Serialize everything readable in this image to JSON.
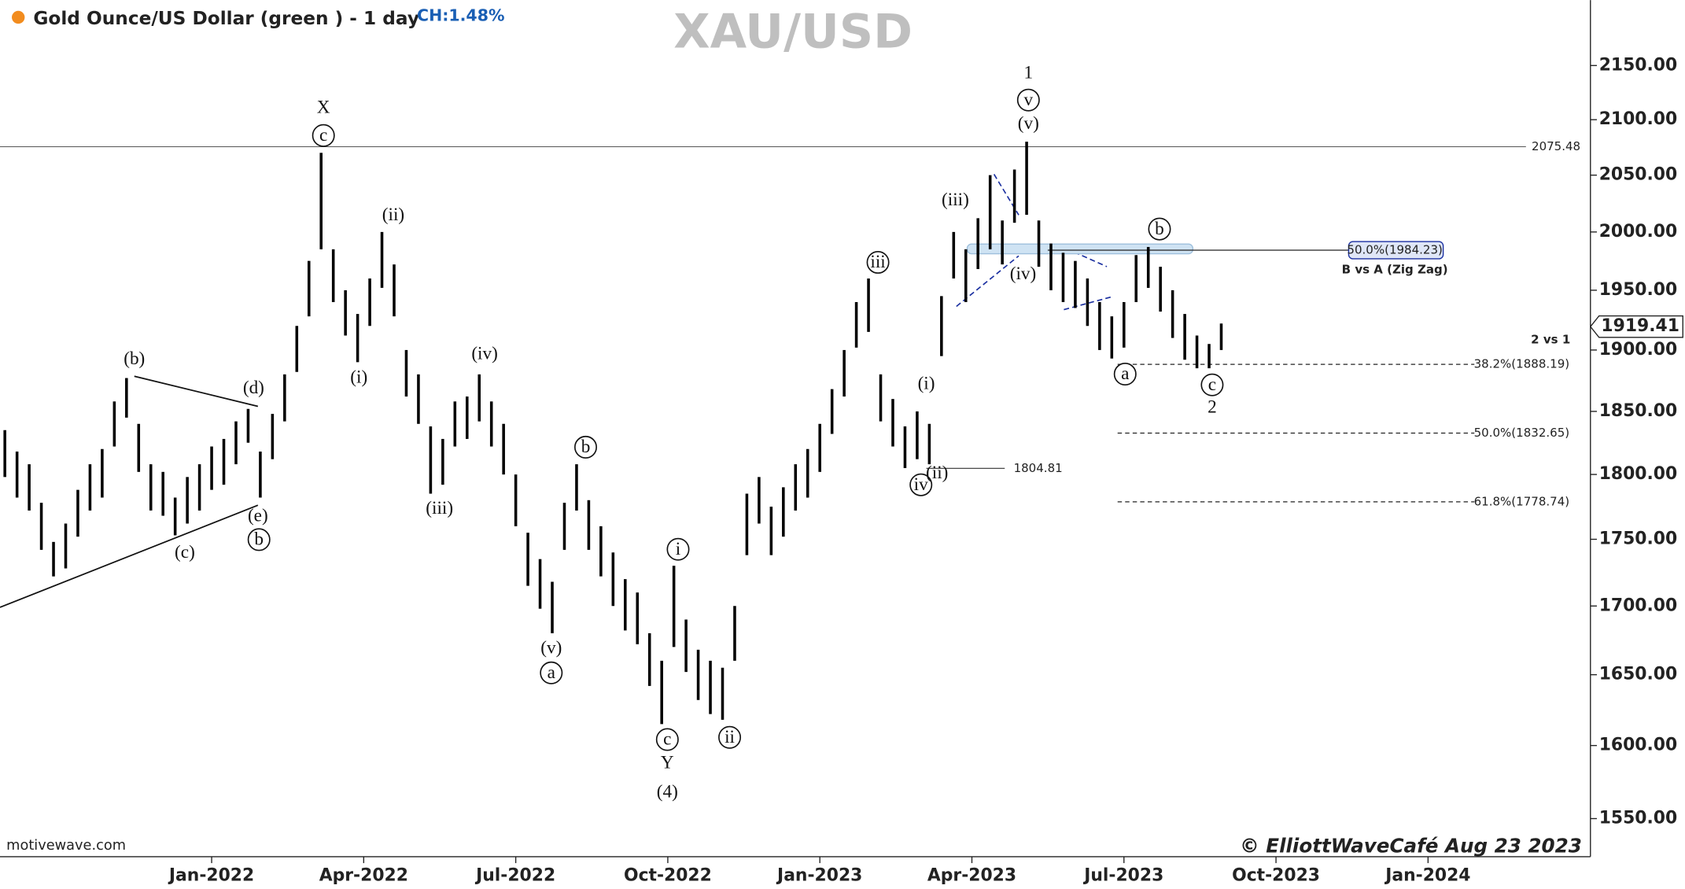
{
  "chart_data": {
    "type": "ohlc",
    "title": "Gold Ounce/US Dollar (green ) - 1 day",
    "change": "CH:1.48%",
    "watermark": "XAU/USD",
    "source": "motivewave.com",
    "credit": "© ElliottWaveCafé Aug 23 2023",
    "log_scale": true,
    "xlim": [
      2021.652,
      2024.267
    ],
    "xticks": [
      {
        "value": 2022.0,
        "label": "Jan-2022"
      },
      {
        "value": 2022.25,
        "label": "Apr-2022"
      },
      {
        "value": 2022.5,
        "label": "Jul-2022"
      },
      {
        "value": 2022.75,
        "label": "Oct-2022"
      },
      {
        "value": 2023.0,
        "label": "Jan-2023"
      },
      {
        "value": 2023.25,
        "label": "Apr-2023"
      },
      {
        "value": 2023.5,
        "label": "Jul-2023"
      },
      {
        "value": 2023.75,
        "label": "Oct-2023"
      },
      {
        "value": 2024.0,
        "label": "Jan-2024"
      }
    ],
    "ylim": [
      1526,
      2212
    ],
    "yticks": [
      {
        "value": 1550,
        "label": "1550.00"
      },
      {
        "value": 1600,
        "label": "1600.00"
      },
      {
        "value": 1650,
        "label": "1650.00"
      },
      {
        "value": 1700,
        "label": "1700.00"
      },
      {
        "value": 1750,
        "label": "1750.00"
      },
      {
        "value": 1800,
        "label": "1800.00"
      },
      {
        "value": 1850,
        "label": "1850.00"
      },
      {
        "value": 1900,
        "label": "1900.00"
      },
      {
        "value": 1950,
        "label": "1950.00"
      },
      {
        "value": 2000,
        "label": "2000.00"
      },
      {
        "value": 2050,
        "label": "2050.00"
      },
      {
        "value": 2100,
        "label": "2100.00"
      },
      {
        "value": 2150,
        "label": "2150.00"
      }
    ],
    "x": [
      2021.66,
      2021.68,
      2021.7,
      2021.72,
      2021.74,
      2021.76,
      2021.78,
      2021.8,
      2021.82,
      2021.84,
      2021.86,
      2021.88,
      2021.9,
      2021.92,
      2021.94,
      2021.96,
      2021.98,
      2022.0,
      2022.02,
      2022.04,
      2022.06,
      2022.08,
      2022.1,
      2022.12,
      2022.14,
      2022.16,
      2022.18,
      2022.2,
      2022.22,
      2022.24,
      2022.26,
      2022.28,
      2022.3,
      2022.32,
      2022.34,
      2022.36,
      2022.38,
      2022.4,
      2022.42,
      2022.44,
      2022.46,
      2022.48,
      2022.5,
      2022.52,
      2022.54,
      2022.56,
      2022.58,
      2022.6,
      2022.62,
      2022.64,
      2022.66,
      2022.68,
      2022.7,
      2022.72,
      2022.74,
      2022.76,
      2022.78,
      2022.8,
      2022.82,
      2022.84,
      2022.86,
      2022.88,
      2022.9,
      2022.92,
      2022.94,
      2022.96,
      2022.98,
      2023.0,
      2023.02,
      2023.04,
      2023.06,
      2023.08,
      2023.1,
      2023.12,
      2023.14,
      2023.16,
      2023.18,
      2023.2,
      2023.22,
      2023.24,
      2023.26,
      2023.28,
      2023.3,
      2023.32,
      2023.34,
      2023.36,
      2023.38,
      2023.4,
      2023.42,
      2023.44,
      2023.46,
      2023.48,
      2023.5,
      2023.52,
      2023.54,
      2023.56,
      2023.58,
      2023.6,
      2023.62,
      2023.64,
      2023.66
    ],
    "series": [
      {
        "color": "#000000",
        "high": [
          1835,
          1818,
          1808,
          1778,
          1748,
          1762,
          1788,
          1808,
          1820,
          1858,
          1877,
          1840,
          1808,
          1802,
          1782,
          1798,
          1808,
          1822,
          1828,
          1842,
          1852,
          1818,
          1848,
          1880,
          1920,
          1975,
          2070,
          1985,
          1950,
          1930,
          1960,
          2000,
          1972,
          1900,
          1880,
          1838,
          1828,
          1858,
          1862,
          1880,
          1858,
          1840,
          1800,
          1755,
          1735,
          1718,
          1778,
          1808,
          1780,
          1760,
          1740,
          1720,
          1710,
          1680,
          1660,
          1730,
          1690,
          1668,
          1660,
          1655,
          1700,
          1785,
          1798,
          1775,
          1790,
          1808,
          1820,
          1840,
          1868,
          1900,
          1940,
          1960,
          1880,
          1860,
          1838,
          1850,
          1840,
          1945,
          2000,
          1985,
          2012,
          2050,
          2010,
          2055,
          2080,
          2010,
          1990,
          1982,
          1975,
          1960,
          1940,
          1928,
          1940,
          1980,
          1987,
          1970,
          1950,
          1930,
          1912,
          1905,
          1922
        ],
        "low": [
          1798,
          1782,
          1772,
          1742,
          1722,
          1728,
          1752,
          1772,
          1782,
          1822,
          1845,
          1802,
          1772,
          1768,
          1753,
          1762,
          1772,
          1788,
          1792,
          1808,
          1825,
          1782,
          1812,
          1842,
          1882,
          1928,
          1985,
          1940,
          1912,
          1890,
          1920,
          1952,
          1928,
          1862,
          1840,
          1785,
          1792,
          1822,
          1828,
          1842,
          1822,
          1800,
          1760,
          1715,
          1698,
          1680,
          1742,
          1772,
          1742,
          1722,
          1700,
          1682,
          1672,
          1642,
          1615,
          1670,
          1652,
          1632,
          1622,
          1618,
          1660,
          1738,
          1762,
          1738,
          1752,
          1772,
          1782,
          1802,
          1832,
          1862,
          1902,
          1915,
          1842,
          1822,
          1805,
          1812,
          1808,
          1895,
          1960,
          1940,
          1968,
          1985,
          1972,
          2008,
          2015,
          1970,
          1950,
          1940,
          1935,
          1920,
          1900,
          1893,
          1902,
          1940,
          1952,
          1932,
          1910,
          1892,
          1885,
          1885,
          1900
        ]
      }
    ],
    "levels": [
      2075.48,
      1804.81
    ],
    "fib_levels": [
      {
        "value": 1984.23,
        "label": "50.0%(1984.23)"
      },
      {
        "value": 1888.19,
        "label": "38.2%(1888.19)"
      },
      {
        "value": 1832.65,
        "label": "50.0%(1832.65)"
      },
      {
        "value": 1778.74,
        "label": "61.8%(1778.74)"
      }
    ],
    "zigzag_note": "B vs A (Zig Zag)",
    "ratio_note": "2 vs 1",
    "last_price": 1919.41,
    "annotations": [
      "X",
      "c",
      "(b)",
      "(d)",
      "(e)",
      "b",
      "(c)",
      "(ii)",
      "(i)",
      "(iii)",
      "(iv)",
      "(v)",
      "a",
      "b",
      "i",
      "c",
      "Y",
      "(4)",
      "ii",
      "iii",
      "(i)",
      "iv",
      "(ii)",
      "(iii)",
      "(iv)",
      "(v)",
      "v",
      "1",
      "b",
      "a",
      "c",
      "2"
    ]
  }
}
